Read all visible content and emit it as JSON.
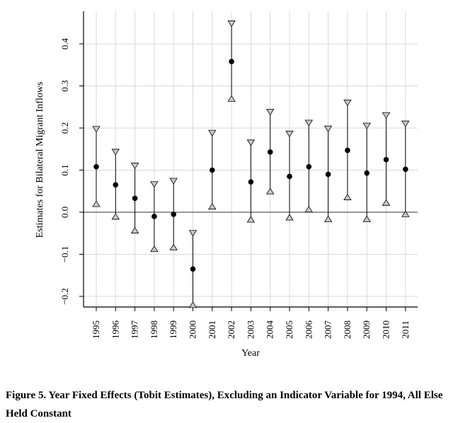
{
  "caption": "Figure 5. Year Fixed Effects (Tobit Estimates), Excluding an Indicator Variable for 1994, All Else Held Constant",
  "chart_data": {
    "type": "scatter",
    "style": "point estimates with confidence interval bars (triangle markers at bounds)",
    "xlabel": "Year",
    "ylabel": "Estimates for Bilateral Migrant Inflows",
    "x": [
      "1995",
      "1996",
      "1997",
      "1998",
      "1999",
      "2000",
      "2001",
      "2002",
      "2003",
      "2004",
      "2005",
      "2006",
      "2007",
      "2008",
      "2009",
      "2010",
      "2011"
    ],
    "estimate": [
      0.108,
      0.065,
      0.033,
      -0.01,
      -0.005,
      -0.135,
      0.1,
      0.358,
      0.072,
      0.143,
      0.085,
      0.108,
      0.09,
      0.147,
      0.093,
      0.125,
      0.102
    ],
    "upper": [
      0.197,
      0.143,
      0.11,
      0.066,
      0.074,
      -0.05,
      0.188,
      0.448,
      0.165,
      0.238,
      0.186,
      0.212,
      0.198,
      0.26,
      0.205,
      0.23,
      0.21
    ],
    "lower": [
      0.02,
      -0.01,
      -0.043,
      -0.087,
      -0.083,
      -0.22,
      0.014,
      0.27,
      -0.017,
      0.05,
      -0.012,
      0.007,
      -0.016,
      0.036,
      -0.016,
      0.023,
      -0.004
    ],
    "yticks": [
      -0.2,
      -0.1,
      0.0,
      0.1,
      0.2,
      0.3,
      0.4
    ],
    "ytick_labels": [
      "−0.2",
      "−0.1",
      "0.0",
      "0.1",
      "0.2",
      "0.3",
      "0.4"
    ],
    "ylim": [
      -0.23,
      0.475
    ],
    "reference_line": 0,
    "grid": true,
    "colors": {
      "axis": "#000000",
      "grid": "#d9d9d9",
      "point": "#000000",
      "triangle_fill": "#c8c8c8"
    }
  }
}
